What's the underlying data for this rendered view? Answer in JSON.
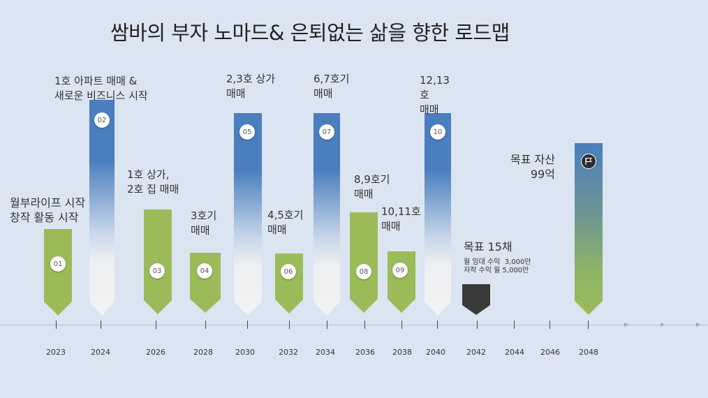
{
  "title": "쌈바의 부자 노마드& 은퇴없는 삶을 향한 로드맵",
  "milestones": [
    {
      "num": "01",
      "year": "2023",
      "label": "월부라이프 시작\n창작 활동 시작"
    },
    {
      "num": "02",
      "year": "2024",
      "label": "1호 아파트 매매 &\n새로운 비즈니스 시작"
    },
    {
      "num": "03",
      "year": "2026",
      "label": "1호 상가,\n2호 집 매매"
    },
    {
      "num": "04",
      "year": "2028",
      "label": "3호기\n매매"
    },
    {
      "num": "05",
      "year": "2030",
      "label": "2,3호 상가\n매매"
    },
    {
      "num": "06",
      "year": "2032",
      "label": "4,5호기\n매매"
    },
    {
      "num": "07",
      "year": "2034",
      "label": "6,7호기\n매매"
    },
    {
      "num": "08",
      "year": "2036",
      "label": "8,9호기\n매매"
    },
    {
      "num": "09",
      "year": "2038",
      "label": "10,11호\n매매"
    },
    {
      "num": "10",
      "year": "2040",
      "label": "12,13\n호\n매매"
    }
  ],
  "goal15": {
    "year": "2042",
    "title": "목표 15채",
    "detail": "월 임대 수익  3,000만\n저작 수익 월 5,000만"
  },
  "goalAsset": {
    "year": "2048",
    "label": "목표 자산\n99억",
    "icon": "flag-icon"
  },
  "years_extra": [
    "2044",
    "2046"
  ],
  "colors": {
    "background": "#dbe4f1",
    "green": "#9bbb59",
    "blue": "#4a7ebe",
    "dark": "#3a3a3a"
  }
}
